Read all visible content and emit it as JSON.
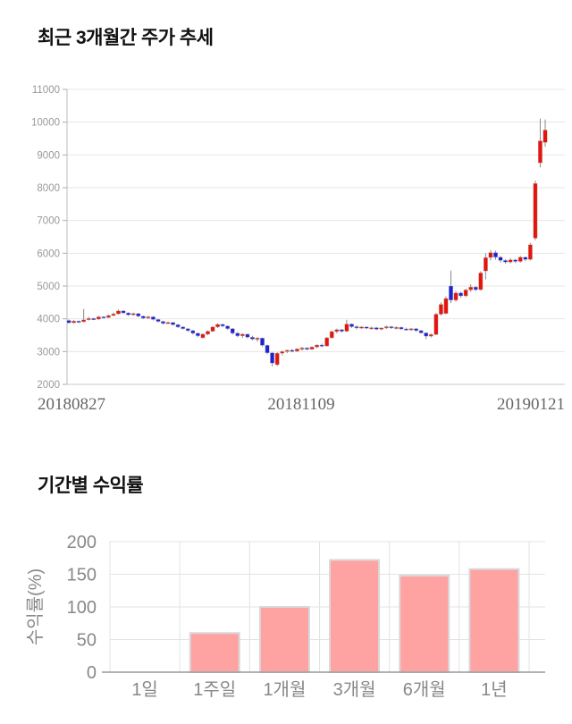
{
  "chart_data": [
    {
      "type": "candlestick",
      "title": "최근 3개월간 주가 추세",
      "y_ticks": [
        2000,
        3000,
        4000,
        5000,
        6000,
        7000,
        8000,
        9000,
        10000,
        11000
      ],
      "y_min": 2000,
      "y_max": 11000,
      "x_labels": [
        "20180827",
        "20181109",
        "20190121"
      ],
      "colors": {
        "up": "#e6140a",
        "down": "#1e22d7",
        "wick": "#888888",
        "grid": "#e6e6e6",
        "axis": "#bbbbbb",
        "tick_label": "#999999",
        "date_label": "#666666"
      },
      "candles_format": [
        "open",
        "high",
        "low",
        "close"
      ],
      "candles": [
        [
          3950,
          3980,
          3850,
          3880
        ],
        [
          3880,
          3960,
          3860,
          3930
        ],
        [
          3930,
          3950,
          3870,
          3910
        ],
        [
          3910,
          4300,
          3890,
          3970
        ],
        [
          3970,
          4060,
          3950,
          4010
        ],
        [
          4010,
          4030,
          3960,
          3990
        ],
        [
          3990,
          4090,
          3970,
          4060
        ],
        [
          4060,
          4080,
          4010,
          4040
        ],
        [
          4040,
          4130,
          4020,
          4100
        ],
        [
          4100,
          4190,
          4080,
          4150
        ],
        [
          4150,
          4280,
          4130,
          4240
        ],
        [
          4240,
          4260,
          4150,
          4180
        ],
        [
          4180,
          4200,
          4090,
          4120
        ],
        [
          4120,
          4190,
          4100,
          4160
        ],
        [
          4160,
          4180,
          4050,
          4080
        ],
        [
          4080,
          4100,
          3990,
          4020
        ],
        [
          4020,
          4090,
          4000,
          4060
        ],
        [
          4060,
          4080,
          3950,
          3980
        ],
        [
          3980,
          4000,
          3890,
          3920
        ],
        [
          3920,
          3940,
          3830,
          3860
        ],
        [
          3860,
          3920,
          3840,
          3890
        ],
        [
          3890,
          3900,
          3790,
          3820
        ],
        [
          3820,
          3840,
          3720,
          3750
        ],
        [
          3750,
          3780,
          3670,
          3700
        ],
        [
          3700,
          3720,
          3600,
          3640
        ],
        [
          3640,
          3660,
          3520,
          3560
        ],
        [
          3560,
          3580,
          3440,
          3480
        ],
        [
          3420,
          3560,
          3400,
          3530
        ],
        [
          3530,
          3650,
          3500,
          3620
        ],
        [
          3620,
          3780,
          3600,
          3750
        ],
        [
          3750,
          3860,
          3720,
          3830
        ],
        [
          3830,
          3850,
          3740,
          3780
        ],
        [
          3780,
          3800,
          3660,
          3700
        ],
        [
          3700,
          3720,
          3520,
          3560
        ],
        [
          3560,
          3600,
          3440,
          3480
        ],
        [
          3480,
          3560,
          3420,
          3530
        ],
        [
          3530,
          3550,
          3400,
          3440
        ],
        [
          3440,
          3480,
          3340,
          3380
        ],
        [
          3380,
          3440,
          3300,
          3410
        ],
        [
          3410,
          3430,
          3150,
          3190
        ],
        [
          3190,
          3210,
          2920,
          2960
        ],
        [
          2960,
          2990,
          2550,
          2650
        ],
        [
          2600,
          2980,
          2560,
          2950
        ],
        [
          2950,
          3030,
          2890,
          3000
        ],
        [
          3000,
          3060,
          2950,
          3040
        ],
        [
          3040,
          3080,
          2980,
          3010
        ],
        [
          3010,
          3100,
          2990,
          3080
        ],
        [
          3080,
          3140,
          3030,
          3110
        ],
        [
          3110,
          3130,
          3040,
          3070
        ],
        [
          3070,
          3160,
          3050,
          3140
        ],
        [
          3140,
          3220,
          3100,
          3200
        ],
        [
          3200,
          3240,
          3130,
          3170
        ],
        [
          3170,
          3450,
          3150,
          3420
        ],
        [
          3420,
          3640,
          3390,
          3610
        ],
        [
          3610,
          3700,
          3560,
          3670
        ],
        [
          3670,
          3690,
          3580,
          3620
        ],
        [
          3620,
          3970,
          3600,
          3840
        ],
        [
          3840,
          3860,
          3720,
          3760
        ],
        [
          3760,
          3800,
          3680,
          3720
        ],
        [
          3720,
          3780,
          3690,
          3750
        ],
        [
          3750,
          3770,
          3680,
          3710
        ],
        [
          3710,
          3760,
          3670,
          3730
        ],
        [
          3730,
          3750,
          3650,
          3680
        ],
        [
          3680,
          3740,
          3650,
          3720
        ],
        [
          3720,
          3790,
          3690,
          3760
        ],
        [
          3760,
          3780,
          3690,
          3720
        ],
        [
          3720,
          3770,
          3680,
          3740
        ],
        [
          3740,
          3760,
          3660,
          3690
        ],
        [
          3690,
          3730,
          3640,
          3670
        ],
        [
          3670,
          3720,
          3630,
          3700
        ],
        [
          3700,
          3720,
          3600,
          3640
        ],
        [
          3640,
          3660,
          3540,
          3570
        ],
        [
          3570,
          3590,
          3380,
          3470
        ],
        [
          3470,
          3550,
          3430,
          3520
        ],
        [
          3520,
          4180,
          3500,
          4140
        ],
        [
          4140,
          4500,
          4100,
          4440
        ],
        [
          4160,
          4680,
          4140,
          4620
        ],
        [
          5000,
          5470,
          4480,
          4570
        ],
        [
          4570,
          4850,
          4520,
          4790
        ],
        [
          4790,
          4830,
          4640,
          4700
        ],
        [
          4700,
          4920,
          4660,
          4880
        ],
        [
          4880,
          5050,
          4820,
          4970
        ],
        [
          4970,
          5000,
          4840,
          4890
        ],
        [
          4890,
          5450,
          4860,
          5400
        ],
        [
          5460,
          6000,
          5200,
          5870
        ],
        [
          5870,
          6100,
          5780,
          6020
        ],
        [
          6020,
          6080,
          5800,
          5880
        ],
        [
          5880,
          5920,
          5720,
          5780
        ],
        [
          5780,
          5820,
          5680,
          5730
        ],
        [
          5730,
          5850,
          5690,
          5800
        ],
        [
          5800,
          5830,
          5700,
          5750
        ],
        [
          5750,
          5920,
          5710,
          5880
        ],
        [
          5880,
          5900,
          5760,
          5810
        ],
        [
          5810,
          6320,
          5780,
          6260
        ],
        [
          6460,
          8220,
          6400,
          8130
        ],
        [
          8760,
          10110,
          8620,
          9430
        ],
        [
          9380,
          10080,
          9250,
          9760
        ]
      ]
    },
    {
      "type": "bar",
      "title": "기간별 수익률",
      "ylabel": "수익률(%)",
      "categories": [
        "1일",
        "1주일",
        "1개월",
        "3개월",
        "6개월",
        "1년"
      ],
      "values": [
        0,
        60,
        100,
        172,
        148,
        158
      ],
      "y_ticks": [
        0,
        50,
        100,
        150,
        200
      ],
      "ylim": [
        0,
        200
      ],
      "grid": "on",
      "colors": {
        "bar": "#ffa2a2",
        "bar_border": "#d9d9d9",
        "grid": "#e3e3e3",
        "axis": "#999999",
        "label": "#888888"
      }
    }
  ]
}
